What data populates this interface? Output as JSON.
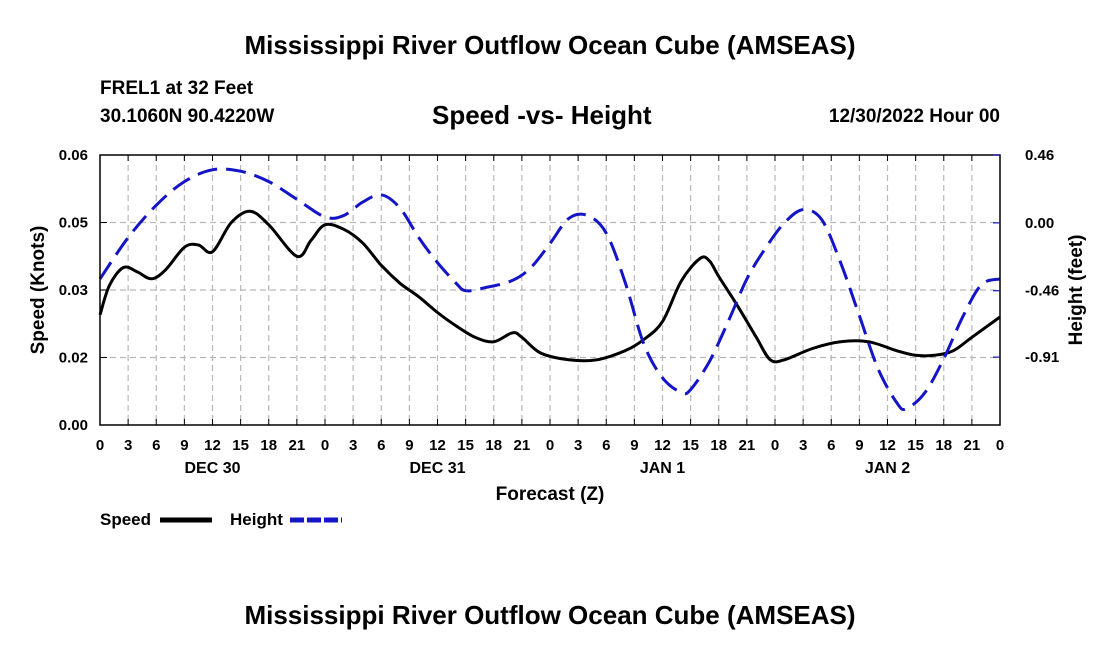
{
  "header": {
    "title": "Mississippi River Outflow Ocean Cube (AMSEAS)",
    "station": "FREL1 at 32 Feet",
    "coords": "30.1060N  90.4220W",
    "subtitle": "Speed -vs- Height",
    "timestamp": "12/30/2022 Hour 00"
  },
  "footer": {
    "title": "Mississippi River Outflow Ocean Cube (AMSEAS)"
  },
  "chart_data": {
    "type": "line",
    "title": "Speed -vs- Height",
    "xlabel": "Forecast (Z)",
    "ylabel_left": "Speed (Knots)",
    "ylabel_right": "Height (feet)",
    "x_range": [
      0,
      96
    ],
    "x_tick_labels": [
      "0",
      "3",
      "6",
      "9",
      "12",
      "15",
      "18",
      "21",
      "0",
      "3",
      "6",
      "9",
      "12",
      "15",
      "18",
      "21",
      "0",
      "3",
      "6",
      "9",
      "12",
      "15",
      "18",
      "21",
      "0",
      "3",
      "6",
      "9",
      "12",
      "15",
      "18",
      "21",
      "0"
    ],
    "day_labels": [
      {
        "label": "DEC 30",
        "hour": 12
      },
      {
        "label": "DEC 31",
        "hour": 36
      },
      {
        "label": "JAN 1",
        "hour": 60
      },
      {
        "label": "JAN 2",
        "hour": 84
      }
    ],
    "left_axis": {
      "min": 0.0,
      "max": 0.06,
      "tick_values": [
        0.0,
        0.015,
        0.03,
        0.045,
        0.06
      ],
      "tick_labels": [
        "0.00",
        "0.02",
        "0.03",
        "0.05",
        "0.06"
      ]
    },
    "right_axis": {
      "min": -1.37,
      "max": 0.46,
      "tick_values": [
        0.46,
        0.0,
        -0.46,
        -0.91
      ],
      "tick_labels": [
        "0.46",
        "0.00",
        "-0.46",
        "-0.91"
      ]
    },
    "grid": true,
    "legend": [
      {
        "name": "Speed",
        "color": "#000000",
        "dashed": false
      },
      {
        "name": "Height",
        "color": "#1414c8",
        "dashed": true
      }
    ],
    "series": [
      {
        "name": "Speed",
        "axis": "left",
        "color": "#000000",
        "points": [
          [
            0,
            0.0245
          ],
          [
            1,
            0.031
          ],
          [
            2.5,
            0.035
          ],
          [
            4,
            0.034
          ],
          [
            5.5,
            0.0325
          ],
          [
            7,
            0.0345
          ],
          [
            9,
            0.0395
          ],
          [
            10.5,
            0.04
          ],
          [
            12,
            0.0385
          ],
          [
            14,
            0.045
          ],
          [
            16,
            0.0475
          ],
          [
            18,
            0.0445
          ],
          [
            21,
            0.0375
          ],
          [
            22.5,
            0.041
          ],
          [
            24,
            0.0445
          ],
          [
            26,
            0.0435
          ],
          [
            28,
            0.0405
          ],
          [
            30,
            0.0355
          ],
          [
            32,
            0.0315
          ],
          [
            34,
            0.0285
          ],
          [
            36,
            0.025
          ],
          [
            38,
            0.022
          ],
          [
            40,
            0.0195
          ],
          [
            42,
            0.0185
          ],
          [
            44,
            0.0205
          ],
          [
            45,
            0.0195
          ],
          [
            47,
            0.016
          ],
          [
            50,
            0.0145
          ],
          [
            53,
            0.0145
          ],
          [
            56,
            0.0165
          ],
          [
            58,
            0.019
          ],
          [
            60,
            0.023
          ],
          [
            62,
            0.032
          ],
          [
            64,
            0.037
          ],
          [
            65,
            0.0365
          ],
          [
            66,
            0.033
          ],
          [
            68,
            0.0265
          ],
          [
            70,
            0.0195
          ],
          [
            71.5,
            0.0145
          ],
          [
            73,
            0.0145
          ],
          [
            76,
            0.017
          ],
          [
            79,
            0.0185
          ],
          [
            82,
            0.0185
          ],
          [
            85,
            0.0165
          ],
          [
            87,
            0.0155
          ],
          [
            89,
            0.0155
          ],
          [
            91,
            0.0165
          ],
          [
            93,
            0.0195
          ],
          [
            96,
            0.024
          ]
        ]
      },
      {
        "name": "Height",
        "axis": "right",
        "color": "#1414c8",
        "points": [
          [
            0,
            -0.38
          ],
          [
            3,
            -0.1
          ],
          [
            6,
            0.12
          ],
          [
            9,
            0.28
          ],
          [
            12,
            0.36
          ],
          [
            15,
            0.35
          ],
          [
            18,
            0.28
          ],
          [
            21,
            0.16
          ],
          [
            24,
            0.04
          ],
          [
            26,
            0.05
          ],
          [
            28,
            0.14
          ],
          [
            30,
            0.19
          ],
          [
            32,
            0.1
          ],
          [
            34,
            -0.1
          ],
          [
            36,
            -0.27
          ],
          [
            38,
            -0.41
          ],
          [
            39,
            -0.46
          ],
          [
            41,
            -0.44
          ],
          [
            44,
            -0.39
          ],
          [
            46,
            -0.3
          ],
          [
            48,
            -0.14
          ],
          [
            50,
            0.03
          ],
          [
            52,
            0.05
          ],
          [
            54,
            -0.07
          ],
          [
            56,
            -0.4
          ],
          [
            58,
            -0.82
          ],
          [
            60,
            -1.05
          ],
          [
            62,
            -1.15
          ],
          [
            63,
            -1.13
          ],
          [
            65,
            -0.94
          ],
          [
            67,
            -0.67
          ],
          [
            69,
            -0.38
          ],
          [
            71,
            -0.17
          ],
          [
            73,
            0.0
          ],
          [
            75,
            0.09
          ],
          [
            77,
            0.02
          ],
          [
            79,
            -0.27
          ],
          [
            81,
            -0.63
          ],
          [
            83,
            -0.99
          ],
          [
            85,
            -1.22
          ],
          [
            86,
            -1.26
          ],
          [
            88,
            -1.15
          ],
          [
            90,
            -0.92
          ],
          [
            92,
            -0.64
          ],
          [
            94,
            -0.42
          ],
          [
            96,
            -0.38
          ]
        ]
      }
    ]
  }
}
